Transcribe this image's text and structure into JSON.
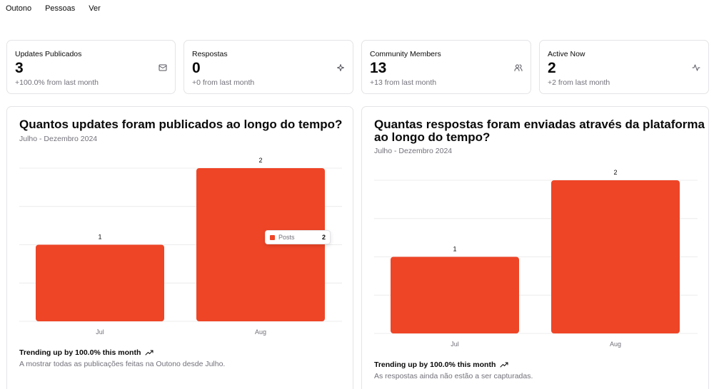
{
  "nav": {
    "items": [
      "Outono",
      "Pessoas",
      "Ver"
    ]
  },
  "stats": [
    {
      "label": "Updates Publicados",
      "value": "3",
      "sub": "+100.0% from last month",
      "icon": "mail-icon"
    },
    {
      "label": "Respostas",
      "value": "0",
      "sub": "+0 from last month",
      "icon": "sparkle-icon"
    },
    {
      "label": "Community Members",
      "value": "13",
      "sub": "+13 from last month",
      "icon": "users-icon"
    },
    {
      "label": "Active Now",
      "value": "2",
      "sub": "+2 from last month",
      "icon": "activity-icon"
    }
  ],
  "colors": {
    "bar": "#ee4527",
    "grid": "#ececec"
  },
  "charts": [
    {
      "title_lines": [
        "Quantos updates foram publicados ao longo do tempo?"
      ],
      "subtitle": "Julho - Dezembro 2024",
      "trend": "Trending up by 100.0% this month",
      "footnote": "A mostrar todas as publicações feitas na Outono desde Julho.",
      "tooltip": {
        "name": "Posts",
        "value": "2"
      }
    },
    {
      "title_lines": [
        "Quantas respostas foram enviadas através da plataforma",
        "ao longo do tempo?"
      ],
      "subtitle": "Julho - Dezembro 2024",
      "trend": "Trending up by 100.0% this month",
      "footnote": "As respostas ainda não estão a ser capturadas."
    }
  ],
  "chart_data": [
    {
      "type": "bar",
      "title": "Quantos updates foram publicados ao longo do tempo?",
      "subtitle": "Julho - Dezembro 2024",
      "categories": [
        "Jul",
        "Aug"
      ],
      "series": [
        {
          "name": "Posts",
          "values": [
            1,
            2
          ]
        }
      ],
      "data_labels": [
        "1",
        "2"
      ],
      "ylim": [
        0,
        2
      ],
      "grid": true
    },
    {
      "type": "bar",
      "title": "Quantas respostas foram enviadas através da plataforma ao longo do tempo?",
      "subtitle": "Julho - Dezembro 2024",
      "categories": [
        "Jul",
        "Aug"
      ],
      "series": [
        {
          "values": [
            1,
            2
          ]
        }
      ],
      "data_labels": [
        "1",
        "2"
      ],
      "ylim": [
        0,
        2
      ],
      "grid": true
    }
  ]
}
